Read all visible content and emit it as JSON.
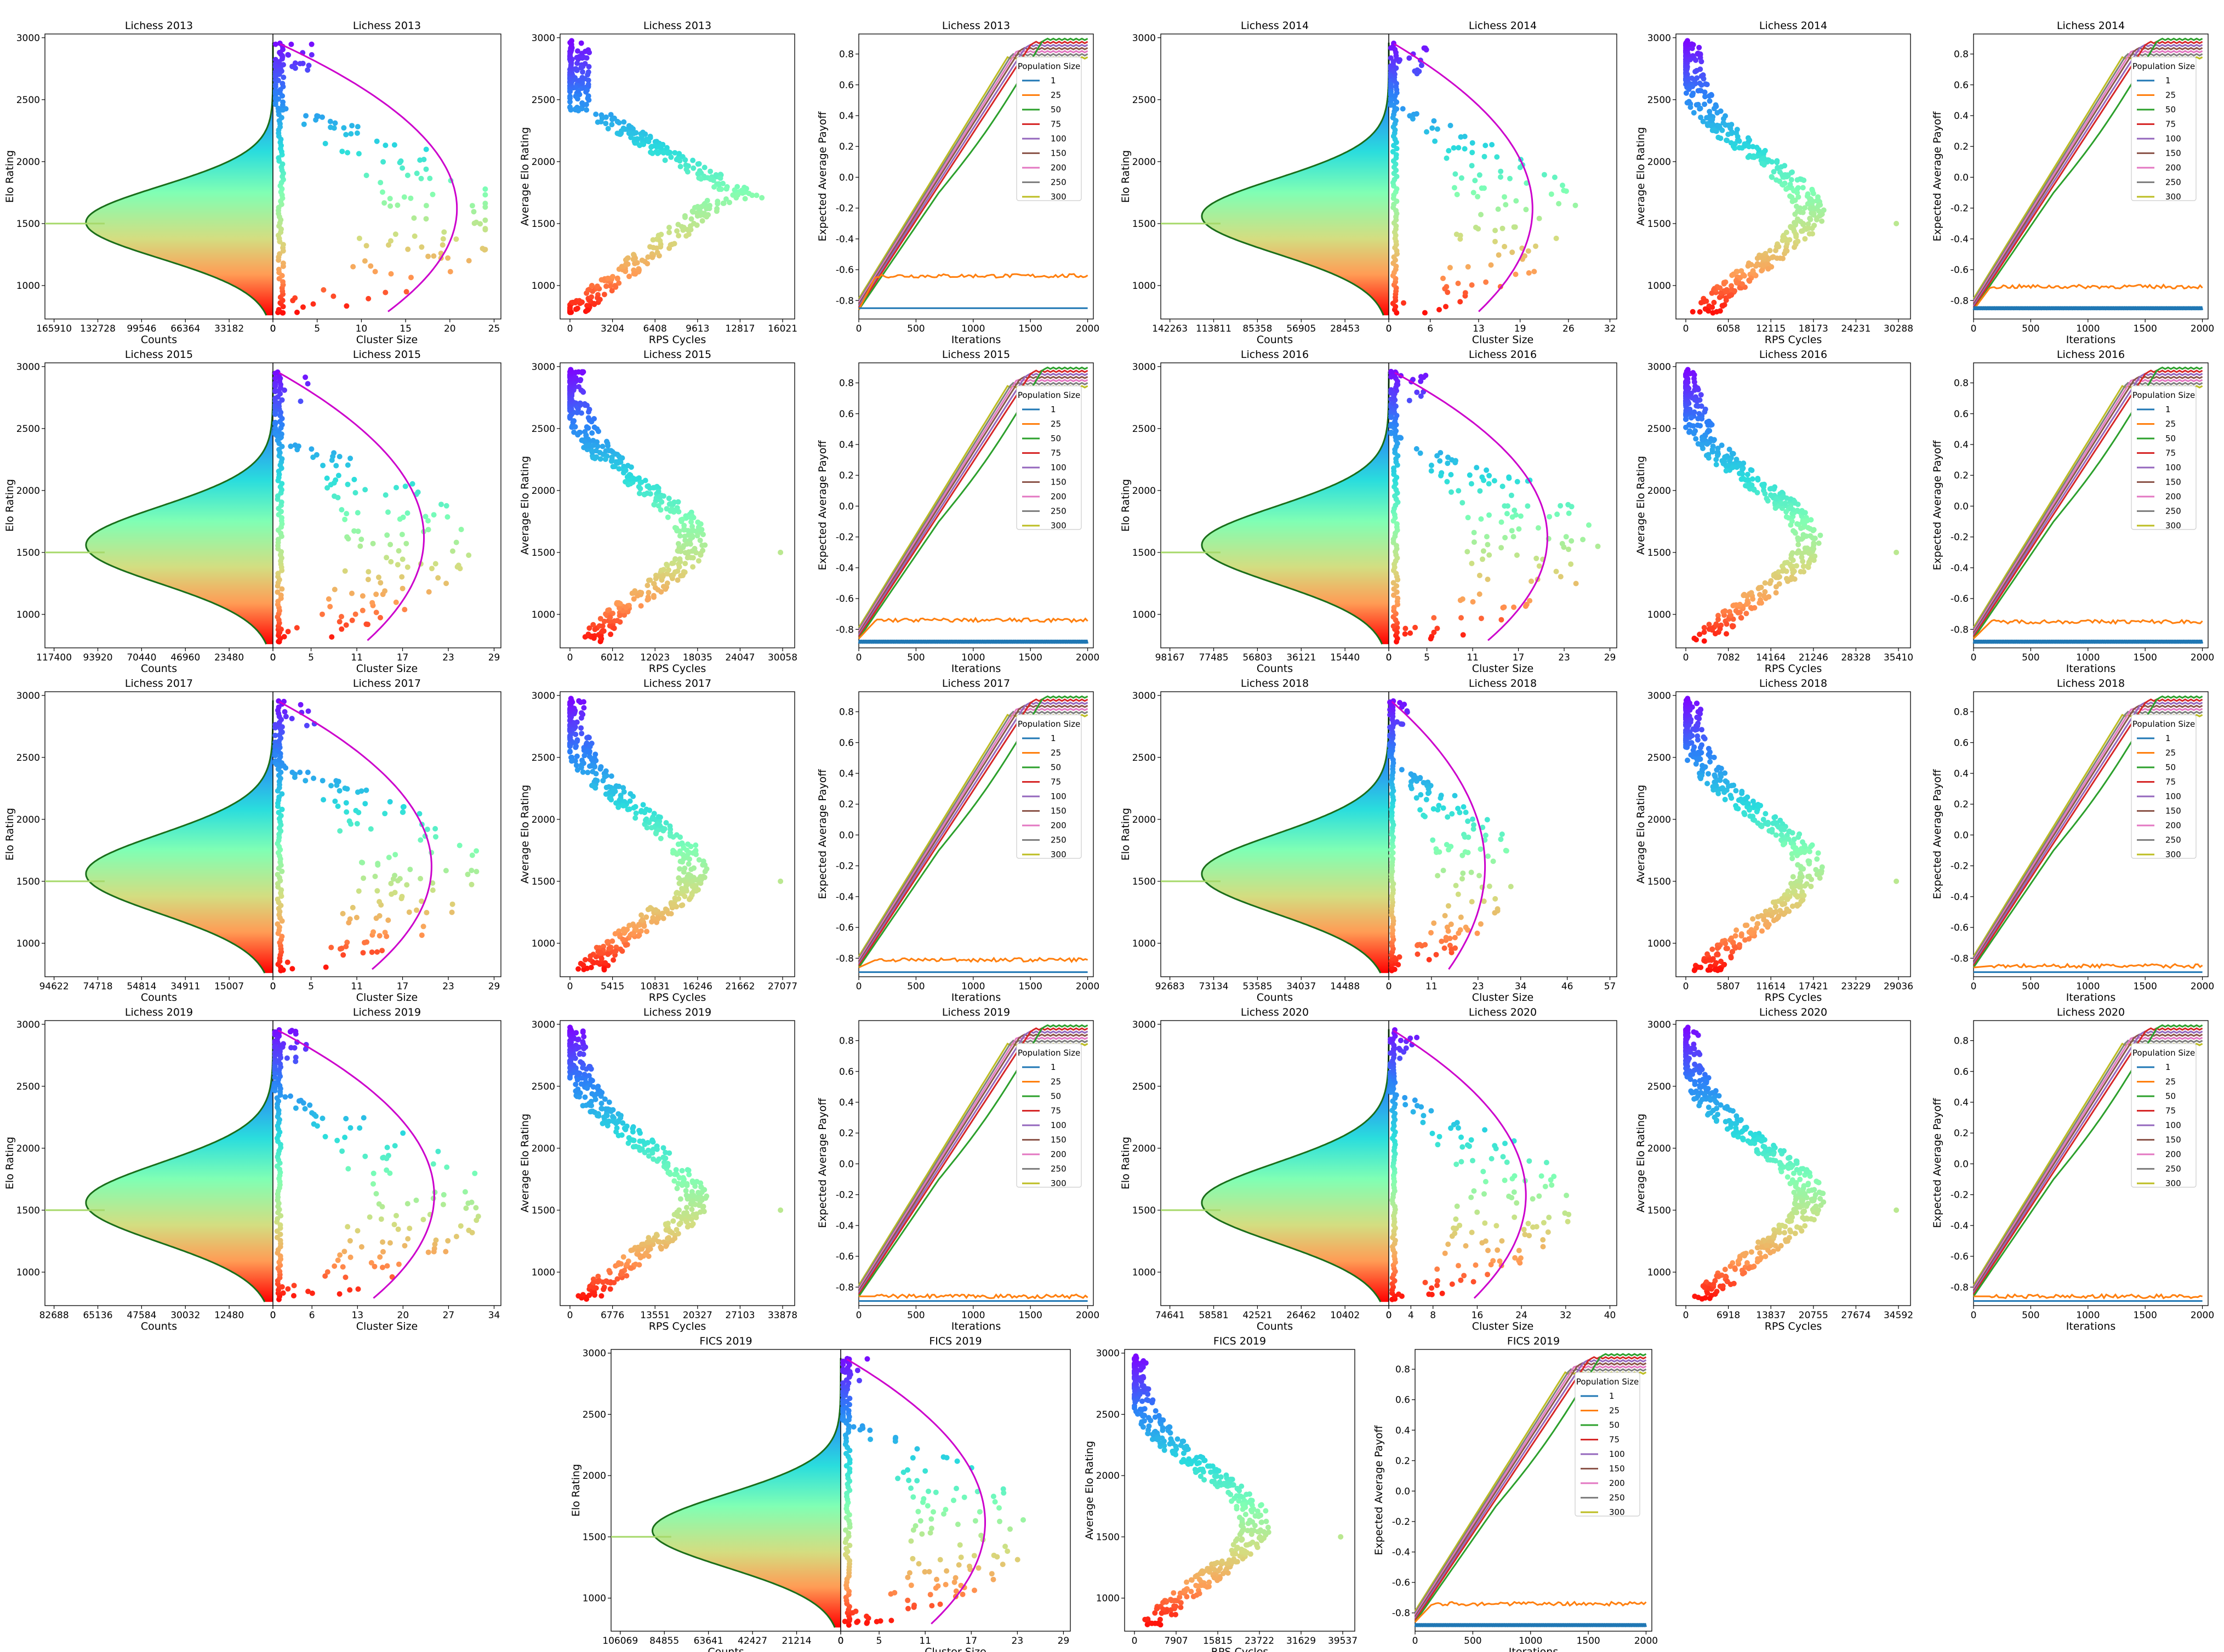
{
  "figure": {
    "axis_labels": {
      "elo": "Elo Rating",
      "avg_elo": "Average Elo Rating",
      "counts": "Counts",
      "cluster": "Cluster Size",
      "rps": "RPS Cycles",
      "payoff": "Expected Average Payoff",
      "iterations": "Iterations"
    },
    "legend_title": "Population Size",
    "population_sizes": [
      "1",
      "25",
      "50",
      "75",
      "100",
      "150",
      "200",
      "250",
      "300"
    ],
    "population_colors": [
      "#1f77b4",
      "#ff7f0e",
      "#2ca02c",
      "#d62728",
      "#9467bd",
      "#8c564b",
      "#e377c2",
      "#7f7f7f",
      "#bcbd22"
    ],
    "elo_ticks": [
      "1000",
      "1500",
      "2000",
      "2500",
      "3000"
    ],
    "payoff_ticks": [
      "-0.8",
      "-0.6",
      "-0.4",
      "-0.2",
      "0.0",
      "0.2",
      "0.4",
      "0.6",
      "0.8"
    ],
    "iteration_ticks": [
      "0",
      "500",
      "1000",
      "1500",
      "2000"
    ]
  },
  "chart_data": [
    {
      "title": "Lichess 2013",
      "type": "scatter",
      "count_ticks": [
        "165910",
        "132728",
        "99546",
        "66364",
        "33182",
        "0"
      ],
      "cluster_ticks": [
        "0",
        "5",
        "10",
        "15",
        "20",
        "25"
      ],
      "rps_ticks": [
        "0",
        "3204",
        "6408",
        "9613",
        "12817",
        "16021"
      ],
      "peak_elo": 1510,
      "sd": 290,
      "cluster_max": 25,
      "parabola_peak": 20,
      "rps_max": 16021,
      "pop_one_level": -0.85,
      "pop_25_level": -0.64,
      "pop_one_oscillates": false
    },
    {
      "title": "Lichess 2014",
      "type": "scatter",
      "count_ticks": [
        "142263",
        "113811",
        "85358",
        "56905",
        "28453",
        "0"
      ],
      "cluster_ticks": [
        "0",
        "6",
        "13",
        "19",
        "26",
        "32"
      ],
      "rps_ticks": [
        "0",
        "6058",
        "12115",
        "18173",
        "24231",
        "30288"
      ],
      "peak_elo": 1560,
      "sd": 300,
      "cluster_max": 32,
      "parabola_peak": 20,
      "rps_max": 30288,
      "pop_one_level": -0.85,
      "pop_25_level": -0.71,
      "pop_one_oscillates": true
    },
    {
      "title": "Lichess 2015",
      "type": "scatter",
      "count_ticks": [
        "117400",
        "93920",
        "70440",
        "46960",
        "23480",
        "0"
      ],
      "cluster_ticks": [
        "0",
        "5",
        "11",
        "17",
        "23",
        "29"
      ],
      "rps_ticks": [
        "0",
        "6012",
        "12023",
        "18035",
        "24047",
        "30058"
      ],
      "peak_elo": 1560,
      "sd": 310,
      "cluster_max": 29,
      "parabola_peak": 19,
      "rps_max": 30058,
      "pop_one_level": -0.88,
      "pop_25_level": -0.74,
      "pop_one_oscillates": true
    },
    {
      "title": "Lichess 2016",
      "type": "scatter",
      "count_ticks": [
        "98167",
        "77485",
        "56803",
        "36121",
        "15440",
        "0"
      ],
      "cluster_ticks": [
        "0",
        "5",
        "11",
        "17",
        "23",
        "29"
      ],
      "rps_ticks": [
        "0",
        "7082",
        "14164",
        "21246",
        "28328",
        "35410"
      ],
      "peak_elo": 1560,
      "sd": 310,
      "cluster_max": 29,
      "parabola_peak": 20,
      "rps_max": 35410,
      "pop_one_level": -0.88,
      "pop_25_level": -0.75,
      "pop_one_oscillates": true
    },
    {
      "title": "Lichess 2017",
      "type": "scatter",
      "count_ticks": [
        "94622",
        "74718",
        "54814",
        "34911",
        "15007",
        "0"
      ],
      "cluster_ticks": [
        "0",
        "5",
        "11",
        "17",
        "23",
        "29"
      ],
      "rps_ticks": [
        "0",
        "5415",
        "10831",
        "16246",
        "21662",
        "27077"
      ],
      "peak_elo": 1560,
      "sd": 320,
      "cluster_max": 29,
      "parabola_peak": 20,
      "rps_max": 27077,
      "pop_one_level": -0.89,
      "pop_25_level": -0.81,
      "pop_one_oscillates": false
    },
    {
      "title": "Lichess 2018",
      "type": "scatter",
      "count_ticks": [
        "92683",
        "73134",
        "53585",
        "34037",
        "14488",
        "0"
      ],
      "cluster_ticks": [
        "0",
        "11",
        "23",
        "34",
        "46",
        "57"
      ],
      "rps_ticks": [
        "0",
        "5807",
        "11614",
        "17421",
        "23229",
        "29036"
      ],
      "peak_elo": 1560,
      "sd": 320,
      "cluster_max": 57,
      "parabola_peak": 24,
      "rps_max": 29036,
      "pop_one_level": -0.89,
      "pop_25_level": -0.85,
      "pop_one_oscillates": false
    },
    {
      "title": "Lichess 2019",
      "type": "scatter",
      "count_ticks": [
        "82688",
        "65136",
        "47584",
        "30032",
        "12480",
        "0"
      ],
      "cluster_ticks": [
        "0",
        "6",
        "13",
        "20",
        "27",
        "34"
      ],
      "rps_ticks": [
        "0",
        "6776",
        "13551",
        "20327",
        "27103",
        "33878"
      ],
      "peak_elo": 1560,
      "sd": 320,
      "cluster_max": 34,
      "parabola_peak": 24,
      "rps_max": 33878,
      "pop_one_level": -0.89,
      "pop_25_level": -0.86,
      "pop_one_oscillates": false
    },
    {
      "title": "Lichess 2020",
      "type": "scatter",
      "count_ticks": [
        "74641",
        "58581",
        "42521",
        "26462",
        "10402",
        "0"
      ],
      "cluster_ticks": [
        "0",
        "4",
        "8",
        "16",
        "24",
        "32",
        "40"
      ],
      "rps_ticks": [
        "0",
        "6918",
        "13837",
        "20755",
        "27674",
        "34592"
      ],
      "peak_elo": 1560,
      "sd": 320,
      "cluster_max": 40,
      "parabola_peak": 24,
      "rps_max": 34592,
      "pop_one_level": -0.89,
      "pop_25_level": -0.86,
      "pop_one_oscillates": false
    },
    {
      "title": "FICS 2019",
      "type": "scatter",
      "count_ticks": [
        "106069",
        "84855",
        "63641",
        "42427",
        "21214",
        "0"
      ],
      "cluster_ticks": [
        "0",
        "5",
        "11",
        "17",
        "23",
        "29"
      ],
      "rps_ticks": [
        "0",
        "7907",
        "15815",
        "23722",
        "31629",
        "39537"
      ],
      "peak_elo": 1550,
      "sd": 300,
      "cluster_max": 29,
      "parabola_peak": 18,
      "rps_max": 39537,
      "pop_one_level": -0.88,
      "pop_25_level": -0.74,
      "pop_one_oscillates": true
    }
  ]
}
